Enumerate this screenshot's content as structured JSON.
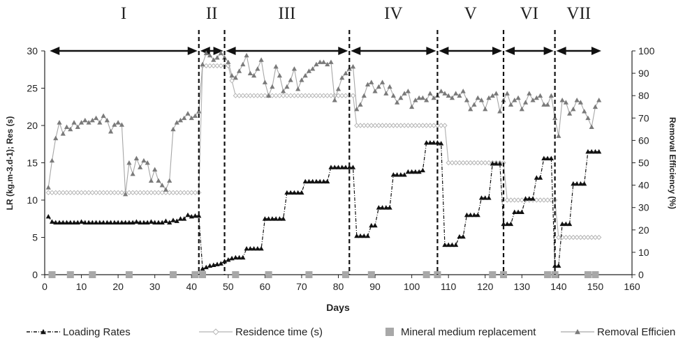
{
  "chart_data": {
    "type": "line",
    "xlabel": "Days",
    "ylabel_left": "LR (kg.m-3.d-1); Res (s)",
    "ylabel_right": "Removal Efficiency (%)",
    "xlim": [
      0,
      160
    ],
    "ylim_left": [
      0,
      30
    ],
    "ylim_right": [
      0,
      100
    ],
    "x_ticks": [
      "0",
      "10",
      "20",
      "30",
      "40",
      "50",
      "60",
      "70",
      "80",
      "90",
      "100",
      "110",
      "120",
      "130",
      "140",
      "150",
      "160"
    ],
    "y_left_ticks": [
      "0",
      "5",
      "10",
      "15",
      "20",
      "25",
      "30"
    ],
    "y_right_ticks": [
      "0",
      "10",
      "20",
      "30",
      "40",
      "50",
      "60",
      "70",
      "80",
      "90",
      "100"
    ],
    "grid": false,
    "legend_position": "bottom",
    "phases": [
      {
        "label": "I",
        "start": 1,
        "end": 42
      },
      {
        "label": "II",
        "start": 42,
        "end": 49
      },
      {
        "label": "III",
        "start": 49,
        "end": 83
      },
      {
        "label": "IV",
        "start": 83,
        "end": 107
      },
      {
        "label": "V",
        "start": 107,
        "end": 125
      },
      {
        "label": "VI",
        "start": 125,
        "end": 139
      },
      {
        "label": "VII",
        "start": 139,
        "end": 152
      }
    ],
    "boundaries": [
      42,
      49,
      83,
      107,
      125,
      139
    ],
    "legend": [
      {
        "key": "loading",
        "label": "Loading Rates"
      },
      {
        "key": "residence",
        "label": "Residence time (s)"
      },
      {
        "key": "mineral",
        "label": "Mineral medium replacement"
      },
      {
        "key": "removal",
        "label": "Removal Efficiency"
      }
    ],
    "series": {
      "loading": {
        "axis": "left",
        "x": [
          1,
          2,
          3,
          4,
          5,
          6,
          7,
          8,
          9,
          10,
          11,
          12,
          13,
          14,
          15,
          16,
          17,
          18,
          19,
          20,
          21,
          22,
          23,
          24,
          25,
          26,
          27,
          28,
          29,
          30,
          31,
          32,
          33,
          34,
          35,
          36,
          37,
          38,
          39,
          40,
          41,
          42,
          43,
          44,
          45,
          46,
          47,
          48,
          49,
          50,
          51,
          52,
          53,
          54,
          55,
          56,
          57,
          58,
          59,
          60,
          61,
          62,
          63,
          64,
          65,
          66,
          67,
          68,
          69,
          70,
          71,
          72,
          73,
          74,
          75,
          76,
          77,
          78,
          79,
          80,
          81,
          82,
          83,
          84,
          85,
          86,
          87,
          88,
          89,
          90,
          91,
          92,
          93,
          94,
          95,
          96,
          97,
          98,
          99,
          100,
          101,
          102,
          103,
          104,
          105,
          106,
          107,
          108,
          109,
          110,
          111,
          112,
          113,
          114,
          115,
          116,
          117,
          118,
          119,
          120,
          121,
          122,
          123,
          124,
          125,
          126,
          127,
          128,
          129,
          130,
          131,
          132,
          133,
          134,
          135,
          136,
          137,
          138,
          139,
          140,
          141,
          142,
          143,
          144,
          145,
          146,
          147,
          148,
          149,
          150,
          151
        ],
        "y": [
          7.8,
          7.1,
          7.0,
          7.0,
          7.0,
          7.0,
          7.0,
          7.0,
          7.0,
          7.1,
          7.0,
          7.0,
          7.0,
          7.0,
          7.0,
          7.0,
          7.0,
          7.0,
          7.0,
          7.0,
          7.0,
          7.0,
          7.0,
          7.0,
          7.1,
          7.0,
          7.0,
          7.0,
          7.1,
          7.0,
          7.0,
          7.0,
          7.2,
          7.0,
          7.3,
          7.2,
          7.5,
          7.5,
          8.0,
          7.8,
          7.9,
          7.9,
          0.8,
          1.0,
          1.2,
          1.3,
          1.4,
          1.5,
          1.8,
          2.0,
          2.2,
          2.3,
          2.3,
          2.3,
          3.5,
          3.5,
          3.5,
          3.5,
          3.5,
          7.5,
          7.5,
          7.5,
          7.5,
          7.5,
          7.5,
          11.0,
          11.0,
          11.0,
          11.0,
          11.0,
          12.5,
          12.5,
          12.5,
          12.5,
          12.5,
          12.5,
          12.5,
          14.4,
          14.4,
          14.4,
          14.4,
          14.4,
          14.4,
          14.4,
          5.2,
          5.2,
          5.2,
          5.2,
          6.6,
          6.6,
          9.0,
          9.0,
          9.0,
          9.0,
          13.4,
          13.4,
          13.4,
          13.4,
          13.8,
          13.8,
          13.8,
          13.8,
          14.0,
          17.7,
          17.7,
          17.7,
          17.7,
          17.6,
          4.0,
          4.0,
          4.0,
          4.0,
          5.1,
          5.1,
          8.0,
          8.0,
          8.0,
          8.0,
          10.3,
          10.3,
          10.3,
          14.9,
          14.9,
          14.9,
          6.8,
          6.8,
          6.8,
          8.4,
          8.4,
          8.4,
          10.2,
          10.2,
          10.2,
          13.0,
          13.0,
          15.6,
          15.6,
          15.6,
          1.2,
          1.2,
          6.8,
          6.8,
          6.8,
          12.2,
          12.2,
          12.2,
          12.2,
          16.5,
          16.5,
          16.5,
          16.5
        ],
        "color": "#111111"
      },
      "residence": {
        "axis": "left",
        "x": [
          1,
          2,
          3,
          4,
          5,
          6,
          7,
          8,
          9,
          10,
          11,
          12,
          13,
          14,
          15,
          16,
          17,
          18,
          19,
          20,
          21,
          22,
          23,
          24,
          25,
          26,
          27,
          28,
          29,
          30,
          31,
          32,
          33,
          34,
          35,
          36,
          37,
          38,
          39,
          40,
          41,
          42,
          43,
          44,
          45,
          46,
          47,
          48,
          49,
          50,
          51,
          52,
          53,
          54,
          55,
          56,
          57,
          58,
          59,
          60,
          61,
          62,
          63,
          64,
          65,
          66,
          67,
          68,
          69,
          70,
          71,
          72,
          73,
          74,
          75,
          76,
          77,
          78,
          79,
          80,
          81,
          82,
          83,
          84,
          85,
          86,
          87,
          88,
          89,
          90,
          91,
          92,
          93,
          94,
          95,
          96,
          97,
          98,
          99,
          100,
          101,
          102,
          103,
          104,
          105,
          106,
          107,
          108,
          109,
          110,
          111,
          112,
          113,
          114,
          115,
          116,
          117,
          118,
          119,
          120,
          121,
          122,
          123,
          124,
          125,
          126,
          127,
          128,
          129,
          130,
          131,
          132,
          133,
          134,
          135,
          136,
          137,
          138,
          139,
          140,
          141,
          142,
          143,
          144,
          145,
          146,
          147,
          148,
          149,
          150,
          151
        ],
        "y": [
          11,
          11,
          11,
          11,
          11,
          11,
          11,
          11,
          11,
          11,
          11,
          11,
          11,
          11,
          11,
          11,
          11,
          11,
          11,
          11,
          11,
          11,
          11,
          11,
          11,
          11,
          11,
          11,
          11,
          11,
          11,
          11,
          11,
          11,
          11,
          11,
          11,
          11,
          11,
          11,
          11,
          11,
          28,
          28,
          28,
          28,
          28,
          28,
          28,
          28,
          26,
          24,
          24,
          24,
          24,
          24,
          24,
          24,
          24,
          24,
          24,
          24,
          24,
          24,
          24,
          24,
          24,
          24,
          24,
          24,
          24,
          24,
          24,
          24,
          24,
          24,
          24,
          24,
          24,
          24,
          24,
          24,
          24,
          24,
          20,
          20,
          20,
          20,
          20,
          20,
          20,
          20,
          20,
          20,
          20,
          20,
          20,
          20,
          20,
          20,
          20,
          20,
          20,
          20,
          20,
          20,
          20,
          20,
          20,
          15,
          15,
          15,
          15,
          15,
          15,
          15,
          15,
          15,
          15,
          15,
          15,
          15,
          15,
          15,
          15,
          10,
          10,
          10,
          10,
          10,
          10,
          10,
          10,
          10,
          10,
          10,
          10,
          10,
          10,
          5,
          5,
          5,
          5,
          5,
          5,
          5,
          5,
          5,
          5,
          5,
          5
        ],
        "color": "#b5b5b5"
      },
      "removal": {
        "axis": "right",
        "x": [
          1,
          2,
          3,
          4,
          5,
          6,
          7,
          8,
          9,
          10,
          11,
          12,
          13,
          14,
          15,
          16,
          17,
          18,
          19,
          20,
          21,
          22,
          23,
          24,
          25,
          26,
          27,
          28,
          29,
          30,
          31,
          32,
          33,
          34,
          35,
          36,
          37,
          38,
          39,
          40,
          41,
          42,
          43,
          44,
          45,
          46,
          47,
          48,
          49,
          50,
          51,
          52,
          53,
          54,
          55,
          56,
          57,
          58,
          59,
          60,
          61,
          62,
          63,
          64,
          65,
          66,
          67,
          68,
          69,
          70,
          71,
          72,
          73,
          74,
          75,
          76,
          77,
          78,
          79,
          80,
          81,
          82,
          83,
          84,
          85,
          86,
          87,
          88,
          89,
          90,
          91,
          92,
          93,
          94,
          95,
          96,
          97,
          98,
          99,
          100,
          101,
          102,
          103,
          104,
          105,
          106,
          107,
          108,
          109,
          110,
          111,
          112,
          113,
          114,
          115,
          116,
          117,
          118,
          119,
          120,
          121,
          122,
          123,
          124,
          125,
          126,
          127,
          128,
          129,
          130,
          131,
          132,
          133,
          134,
          135,
          136,
          137,
          138,
          139,
          140,
          141,
          142,
          143,
          144,
          145,
          146,
          147,
          148,
          149,
          150,
          151
        ],
        "y": [
          39,
          51,
          61,
          68,
          63,
          66,
          65,
          68,
          66,
          68,
          69,
          68,
          69,
          70,
          68,
          71,
          69,
          64,
          67,
          68,
          67,
          36,
          50,
          45,
          52,
          48,
          51,
          50,
          42,
          47,
          42,
          40,
          38,
          42,
          65,
          68,
          69,
          70,
          72,
          70,
          71,
          73,
          94,
          99,
          98,
          96,
          97,
          99,
          97,
          95,
          89,
          88,
          91,
          94,
          98,
          90,
          89,
          92,
          96,
          86,
          80,
          84,
          93,
          89,
          82,
          84,
          87,
          92,
          83,
          87,
          89,
          91,
          92,
          94,
          95,
          95,
          94,
          95,
          78,
          83,
          88,
          90,
          92,
          93,
          74,
          76,
          80,
          85,
          86,
          82,
          84,
          86,
          81,
          84,
          80,
          77,
          79,
          81,
          82,
          75,
          78,
          79,
          79,
          78,
          81,
          79,
          80,
          82,
          81,
          80,
          79,
          81,
          80,
          82,
          78,
          74,
          76,
          79,
          78,
          74,
          79,
          80,
          81,
          73,
          78,
          81,
          76,
          78,
          79,
          74,
          77,
          81,
          78,
          79,
          80,
          76,
          76,
          80,
          70,
          62,
          78,
          77,
          72,
          74,
          78,
          77,
          73,
          70,
          66,
          75,
          78
        ],
        "color": "#7a7a7a"
      },
      "mineral": {
        "axis": "left",
        "x": [
          2,
          7,
          13,
          23,
          35,
          41,
          43,
          52,
          61,
          72,
          82,
          89,
          104,
          107,
          122,
          125,
          137,
          139,
          148,
          150
        ],
        "y": [
          0,
          0,
          0,
          0,
          0,
          0,
          0,
          0,
          0,
          0,
          0,
          0,
          0,
          0,
          0,
          0,
          0,
          0,
          0,
          0
        ],
        "color": "#a8a8a8"
      }
    }
  }
}
